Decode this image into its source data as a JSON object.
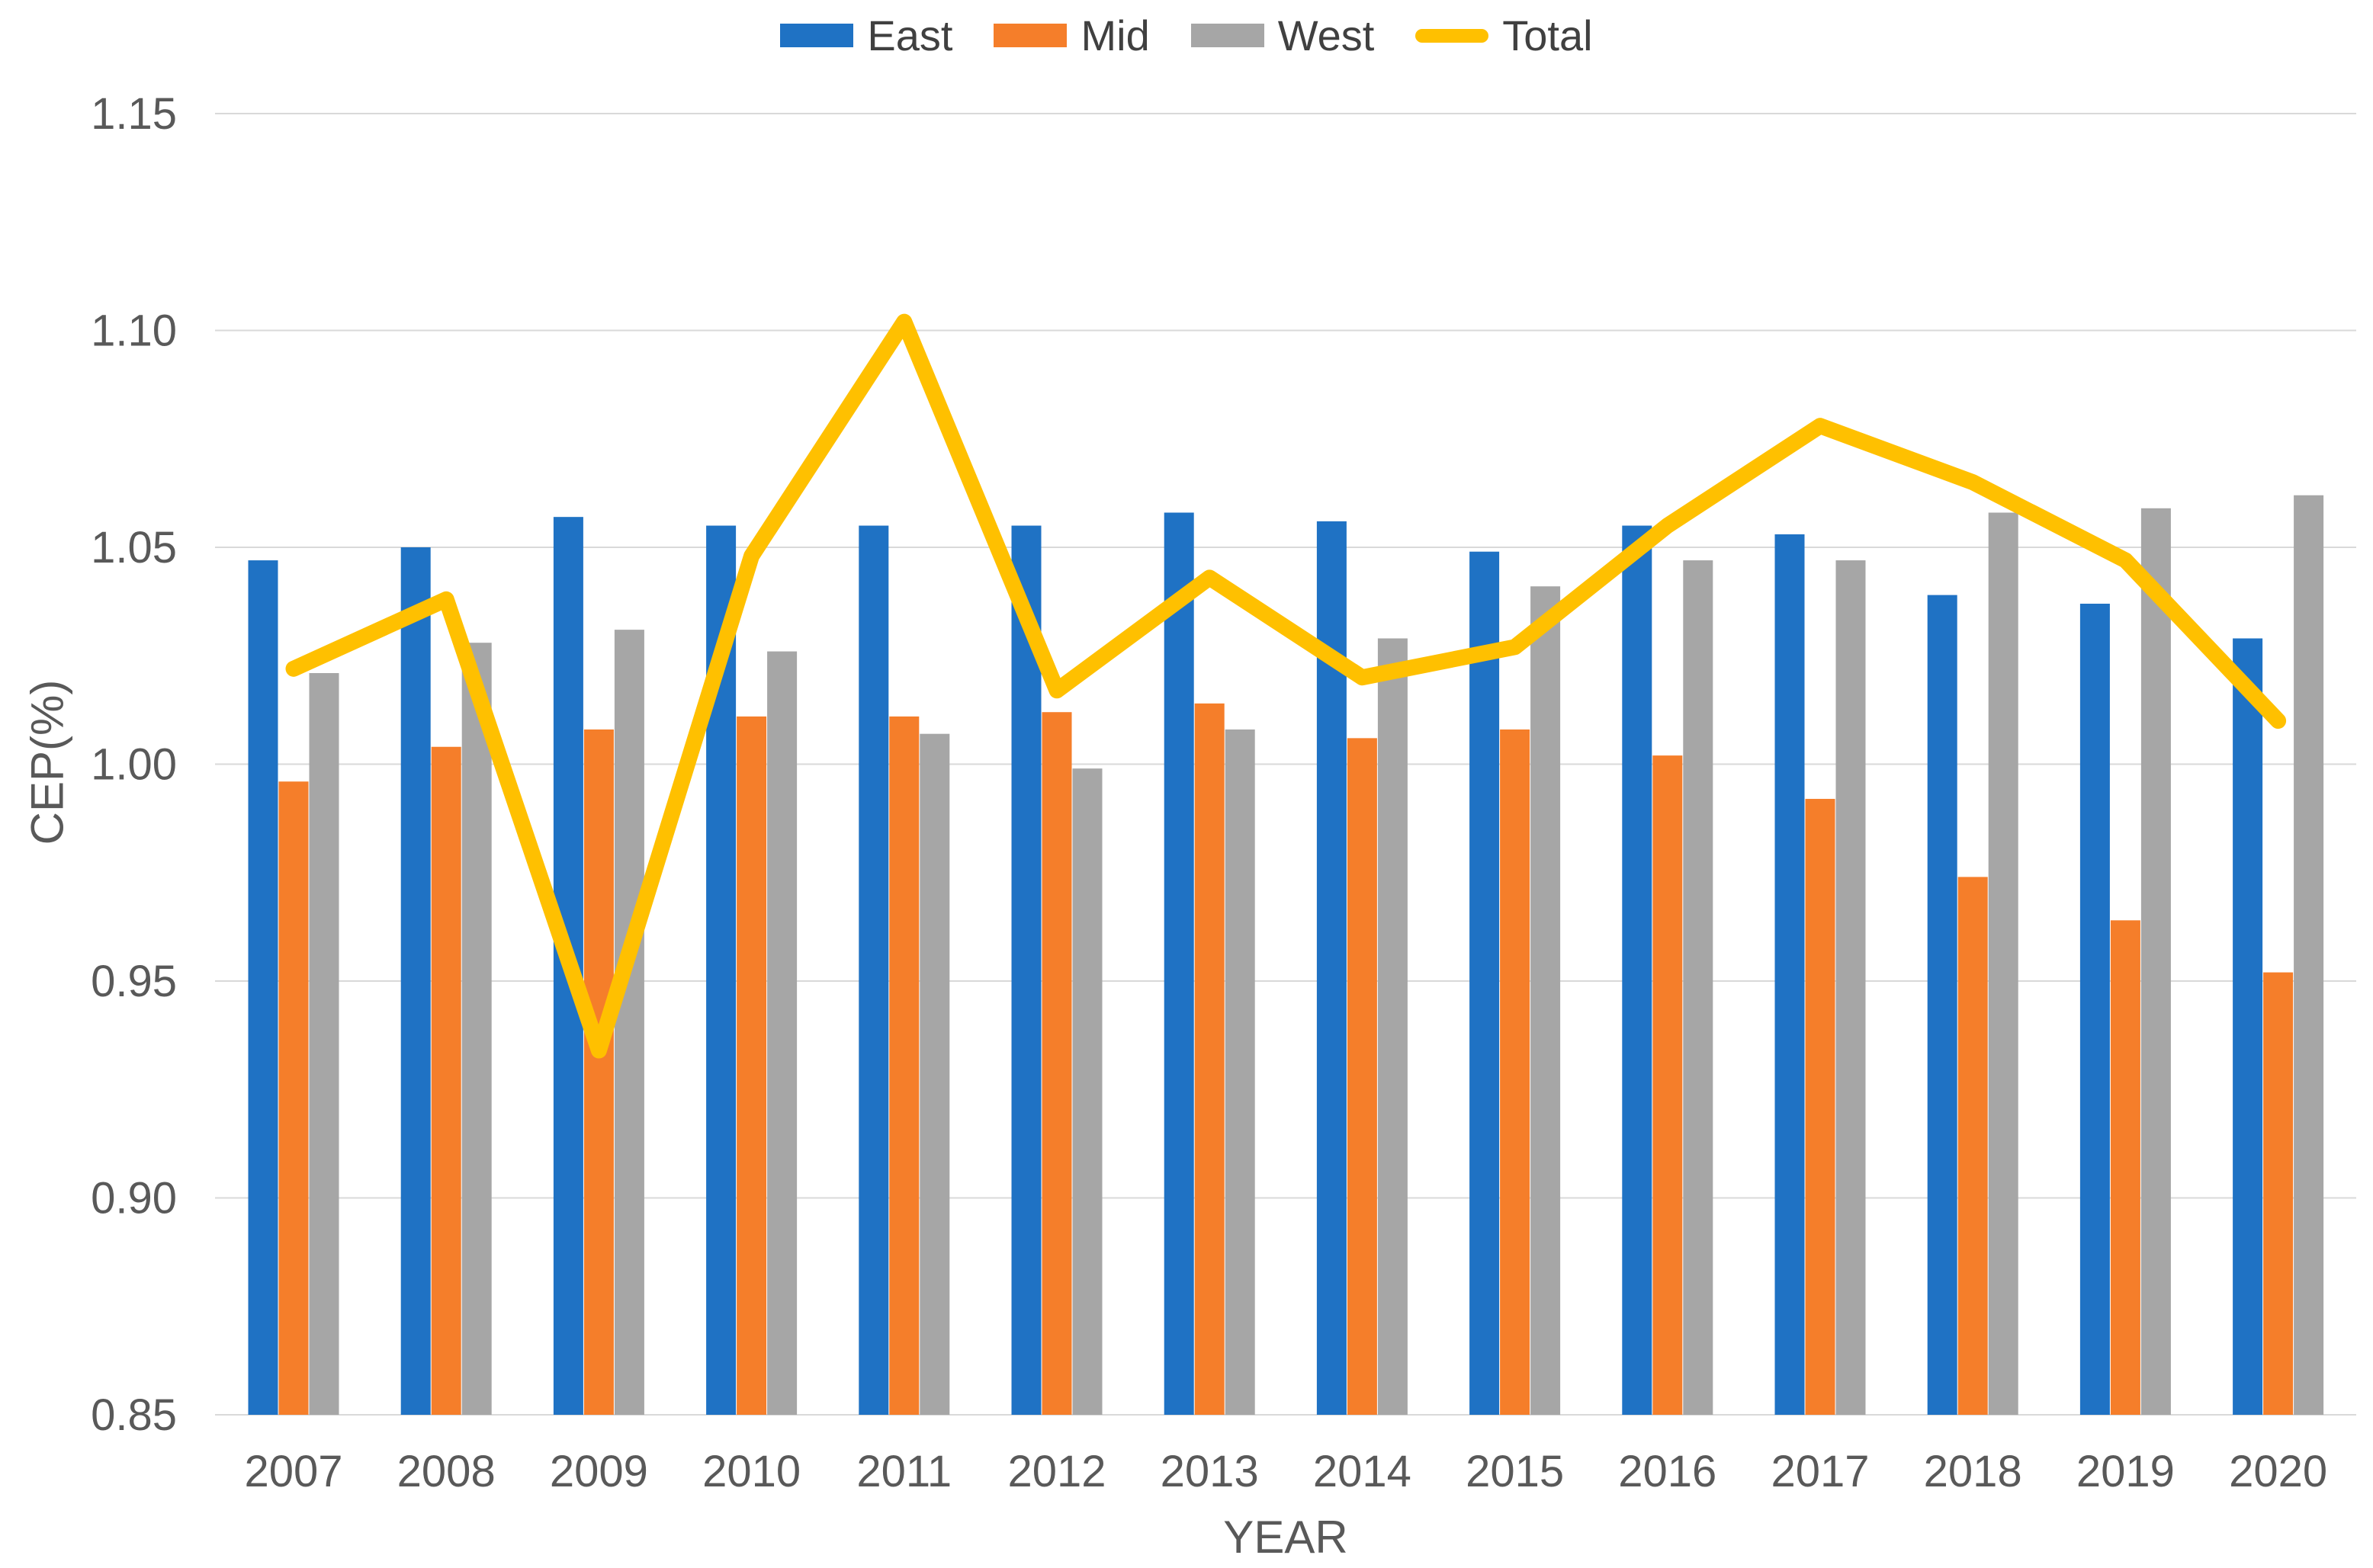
{
  "chart_data": {
    "type": "bar+line",
    "title": "",
    "xlabel": "YEAR",
    "ylabel": "CEP(%)",
    "ylim": [
      0.85,
      1.15
    ],
    "ytick_step": 0.05,
    "yticks": [
      "0.85",
      "0.90",
      "0.95",
      "1.00",
      "1.05",
      "1.10",
      "1.15"
    ],
    "categories": [
      "2007",
      "2008",
      "2009",
      "2010",
      "2011",
      "2012",
      "2013",
      "2014",
      "2015",
      "2016",
      "2017",
      "2018",
      "2019",
      "2020"
    ],
    "series": [
      {
        "name": "East",
        "type": "bar",
        "color": "#1F72C4",
        "values": [
          1.047,
          1.05,
          1.057,
          1.055,
          1.055,
          1.055,
          1.058,
          1.056,
          1.049,
          1.055,
          1.053,
          1.039,
          1.037,
          1.029
        ]
      },
      {
        "name": "Mid",
        "type": "bar",
        "color": "#F57E2A",
        "values": [
          0.996,
          1.004,
          1.008,
          1.011,
          1.011,
          1.012,
          1.014,
          1.006,
          1.008,
          1.002,
          0.992,
          0.974,
          0.964,
          0.952
        ]
      },
      {
        "name": "West",
        "type": "bar",
        "color": "#A6A6A6",
        "values": [
          1.021,
          1.028,
          1.031,
          1.026,
          1.007,
          0.999,
          1.008,
          1.029,
          1.041,
          1.047,
          1.047,
          1.058,
          1.059,
          1.062
        ]
      },
      {
        "name": "Total",
        "type": "line",
        "color": "#FFC000",
        "values": [
          1.022,
          1.038,
          0.934,
          1.048,
          1.102,
          1.017,
          1.043,
          1.02,
          1.027,
          1.055,
          1.078,
          1.065,
          1.047,
          1.01
        ]
      }
    ],
    "legend_position": "top",
    "grid": true,
    "colors": {
      "grid": "#D9D9D9",
      "text": "#595959",
      "background": "#FFFFFF"
    }
  }
}
